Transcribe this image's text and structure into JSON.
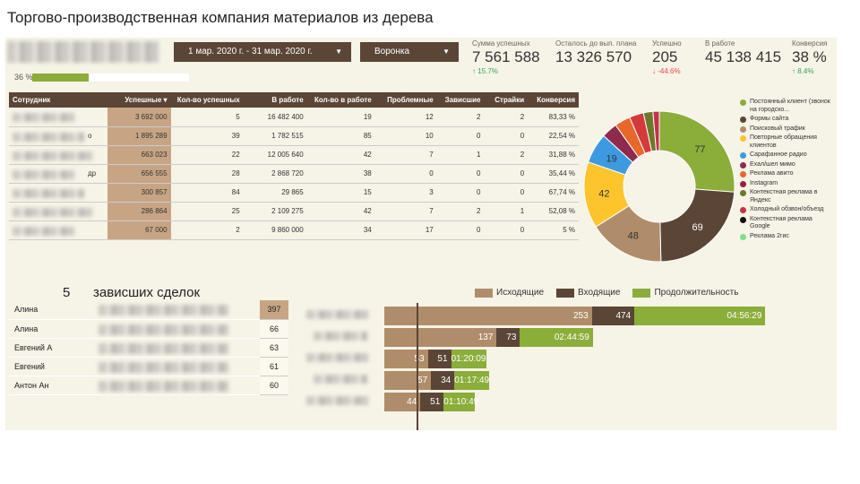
{
  "page_title": "Торгово-производственная компания материалов из дерева",
  "header": {
    "date_range": "1 мар. 2020 г. - 31 мар. 2020 г.",
    "funnel": "Воронка",
    "progress_label": "36 %",
    "progress_value": 0.36
  },
  "kpis": [
    {
      "label": "Сумма успешных",
      "value": "7 561 588",
      "delta": "↑ 15.7%",
      "dir": "up"
    },
    {
      "label": "Осталось до вып. плана",
      "value": "13 326 570",
      "delta": "",
      "dir": ""
    },
    {
      "label": "Успешно",
      "value": "205",
      "delta": "↓ -44.6%",
      "dir": "down"
    },
    {
      "label": "В работе",
      "value": "45 138 415",
      "delta": "",
      "dir": ""
    },
    {
      "label": "Конверсия",
      "value": "38 %",
      "delta": "↑ 8.4%",
      "dir": "up"
    }
  ],
  "table": {
    "columns": [
      "Сотрудник",
      "Успешные ▾",
      "Кол-во успешных",
      "В работе",
      "Кол-во в работе",
      "Проблемные",
      "Зависшие",
      "Страйки",
      "Конверсия"
    ],
    "rows": [
      {
        "name": "",
        "vals": [
          "3 692 000",
          "5",
          "16 482 400",
          "19",
          "12",
          "2",
          "2",
          "83,33 %"
        ]
      },
      {
        "name": "о",
        "vals": [
          "1 895 289",
          "39",
          "1 782 515",
          "85",
          "10",
          "0",
          "0",
          "22,54 %"
        ]
      },
      {
        "name": "",
        "vals": [
          "663 023",
          "22",
          "12 005 640",
          "42",
          "7",
          "1",
          "2",
          "31,88 %"
        ]
      },
      {
        "name": "др",
        "vals": [
          "656 555",
          "28",
          "2 868 720",
          "38",
          "0",
          "0",
          "0",
          "35,44 %"
        ]
      },
      {
        "name": "",
        "vals": [
          "300 857",
          "84",
          "29 865",
          "15",
          "3",
          "0",
          "0",
          "67,74 %"
        ]
      },
      {
        "name": "",
        "vals": [
          "286 864",
          "25",
          "2 109 275",
          "42",
          "7",
          "2",
          "1",
          "52,08 %"
        ]
      },
      {
        "name": "",
        "vals": [
          "67 000",
          "2",
          "9 860 000",
          "34",
          "17",
          "0",
          "0",
          "5 %"
        ]
      }
    ]
  },
  "pie": {
    "slices": [
      {
        "label": "77",
        "value": 77,
        "color": "#8bad3a"
      },
      {
        "label": "69",
        "value": 69,
        "color": "#5b4536"
      },
      {
        "label": "48",
        "value": 48,
        "color": "#b08d6a"
      },
      {
        "label": "42",
        "value": 42,
        "color": "#fcc52c"
      },
      {
        "label": "19",
        "value": 19,
        "color": "#3d9ae0"
      },
      {
        "label": "",
        "value": 10,
        "color": "#8e2a4b"
      },
      {
        "label": "",
        "value": 10,
        "color": "#e8682c"
      },
      {
        "label": "",
        "value": 9,
        "color": "#d43a3a"
      },
      {
        "label": "",
        "value": 6,
        "color": "#6b7a2a"
      },
      {
        "label": "",
        "value": 4,
        "color": "#c7304a"
      }
    ]
  },
  "legend": [
    {
      "label": "Постоянный клиент (звонок на городско...",
      "color": "#8bad3a"
    },
    {
      "label": "Формы сайта",
      "color": "#5b4536"
    },
    {
      "label": "Поисковый трафик",
      "color": "#b08d6a"
    },
    {
      "label": "Повторные обращения клиентов",
      "color": "#fcc52c"
    },
    {
      "label": "Сарафанное радио",
      "color": "#3d9ae0"
    },
    {
      "label": "Ехал/шел мимо",
      "color": "#8e2a4b"
    },
    {
      "label": "Реклама авито",
      "color": "#e8682c"
    },
    {
      "label": "Instagram",
      "color": "#9b1f3f"
    },
    {
      "label": "Контекстная реклама в Яндекс",
      "color": "#6b7a2a"
    },
    {
      "label": "Холодный обзвон/объезд",
      "color": "#c7304a"
    },
    {
      "label": "Контекстная реклама Google",
      "color": "#111111"
    },
    {
      "label": "Реклама 2гис",
      "color": "#7ee08a"
    }
  ],
  "hanging": {
    "count": "5",
    "label": "зависших сделок",
    "rows": [
      {
        "name": "Алина",
        "count": "397"
      },
      {
        "name": "Алина",
        "count": "66"
      },
      {
        "name": "Евгений А",
        "count": "63"
      },
      {
        "name": "Евгений",
        "count": "61"
      },
      {
        "name": "Антон Ан",
        "count": "60"
      }
    ]
  },
  "bars": {
    "legend": [
      "Исходящие",
      "Входящие",
      "Продолжительность"
    ],
    "rows": [
      {
        "out": "253",
        "in": "474",
        "dur": "04:56:29"
      },
      {
        "out": "137",
        "in": "73",
        "dur": "02:44:59"
      },
      {
        "out": "53",
        "in": "51",
        "dur": "01:20:09"
      },
      {
        "out": "57",
        "in": "34",
        "dur": "01:17:49"
      },
      {
        "out": "44",
        "in": "51",
        "dur": "01:10:49"
      }
    ]
  }
}
